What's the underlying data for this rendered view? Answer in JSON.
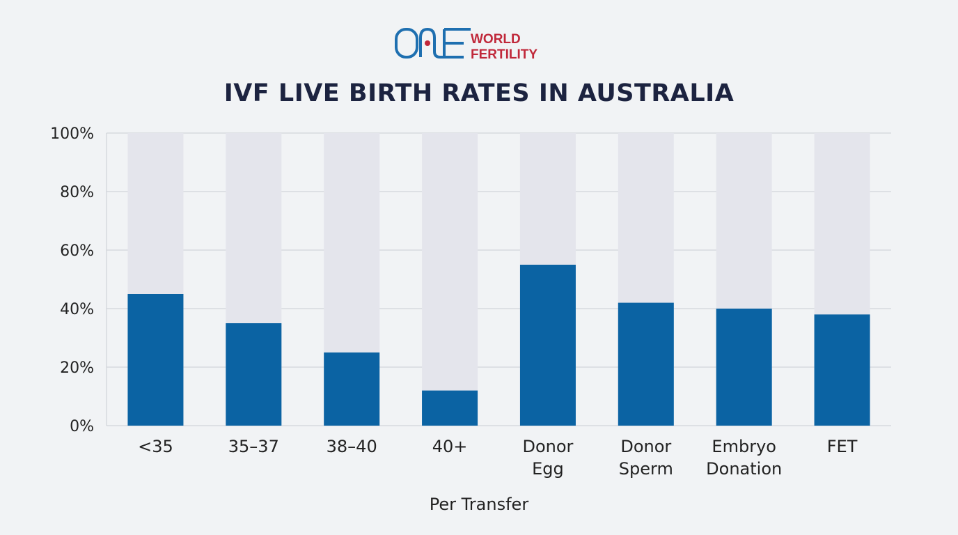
{
  "logo": {
    "text_line1": "WORLD",
    "text_line2": "FERTILITY",
    "mark": "ONE",
    "colors": {
      "blue": "#1e6fb0",
      "red": "#c0283a"
    }
  },
  "chart_data": {
    "type": "bar",
    "title": "IVF LIVE BIRTH RATES IN AUSTRALIA",
    "xlabel": "Per Transfer",
    "ylabel": "",
    "categories": [
      [
        "<35"
      ],
      [
        "35–37"
      ],
      [
        "38–40"
      ],
      [
        "40+"
      ],
      [
        "Donor",
        "Egg"
      ],
      [
        "Donor",
        "Sperm"
      ],
      [
        "Embryo",
        "Donation"
      ],
      [
        "FET"
      ]
    ],
    "values": [
      45,
      35,
      25,
      12,
      55,
      42,
      40,
      38
    ],
    "ylim": [
      0,
      100
    ],
    "yticks": [
      0,
      20,
      40,
      60,
      80,
      100
    ],
    "ytick_labels": [
      "0%",
      "20%",
      "40%",
      "60%",
      "80%",
      "100%"
    ],
    "background_bar_to": 100,
    "grid": true,
    "colors": {
      "bar": "#0b63a3",
      "background_bar": "#e4e5ec",
      "grid": "#c9ccd2"
    }
  }
}
